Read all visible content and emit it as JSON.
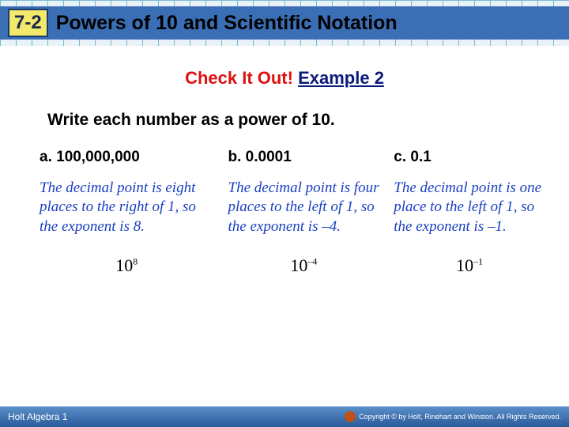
{
  "header": {
    "section_number": "7-2",
    "title": "Powers of 10 and Scientific Notation"
  },
  "check_title": {
    "red": "Check It Out!",
    "blue": "Example 2"
  },
  "instruction": "Write each number as a power of 10.",
  "problems": {
    "a": {
      "label": "a. 100,000,000",
      "explain": "The decimal point is eight places to the right of 1, so the exponent is 8.",
      "answer_base": "10",
      "answer_exp": "8"
    },
    "b": {
      "label": "b. 0.0001",
      "explain": "The decimal point is four places to the left of 1, so the exponent is –4.",
      "answer_base": "10",
      "answer_exp": "–4"
    },
    "c": {
      "label": "c. 0.1",
      "explain": "The decimal point is one place to the left of 1, so the exponent is –1.",
      "answer_base": "10",
      "answer_exp": "–1"
    }
  },
  "footer": {
    "left": "Holt Algebra 1",
    "right": "Copyright © by Holt, Rinehart and Winston. All Rights Reserved."
  },
  "colors": {
    "header_bar": "#3b6fb5",
    "section_box": "#f2e96b",
    "check_red": "#d11",
    "check_blue": "#0a1a7a",
    "explain_blue": "#1a40c0",
    "footer_grad_top": "#5a8fc8",
    "footer_grad_bot": "#2a5a9a"
  }
}
